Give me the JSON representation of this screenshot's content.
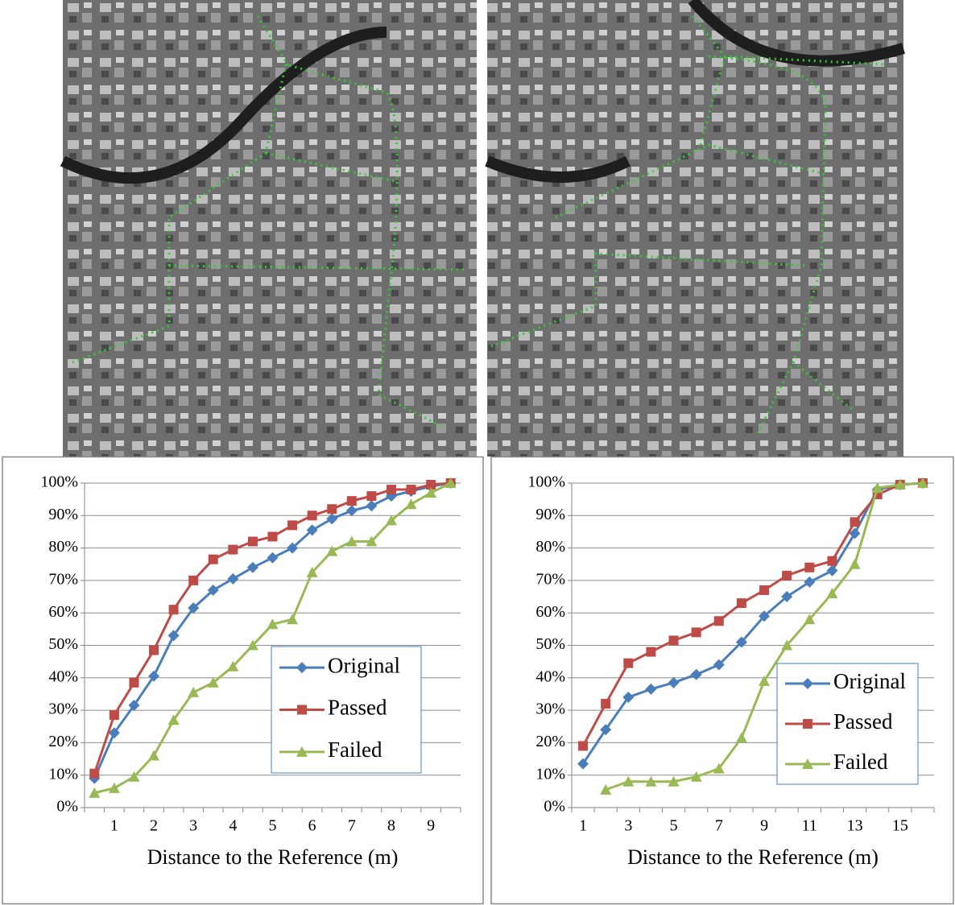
{
  "chart_data": [
    {
      "type": "line",
      "x_label": "Distance to the Reference (m)",
      "categories": [
        null,
        "1",
        null,
        "2",
        null,
        "3",
        null,
        "4",
        null,
        "5",
        null,
        "6",
        null,
        "7",
        null,
        "8",
        null,
        "9",
        null
      ],
      "series": [
        {
          "name": "Original",
          "color": "#4a7ebb",
          "marker": "diamond",
          "values": [
            9,
            23,
            31.5,
            40.5,
            53,
            61.5,
            67,
            70.5,
            74,
            77,
            80,
            85.5,
            89,
            91.5,
            93,
            96,
            97.5,
            99,
            100
          ]
        },
        {
          "name": "Passed",
          "color": "#be4b48",
          "marker": "square",
          "values": [
            10.5,
            28.5,
            38.5,
            48.5,
            61,
            70,
            76.5,
            79.5,
            82,
            83.5,
            87,
            90,
            92,
            94.5,
            96,
            98,
            98,
            99.5,
            100
          ]
        },
        {
          "name": "Failed",
          "color": "#98b954",
          "marker": "triangle",
          "values": [
            4.5,
            6,
            9.5,
            16,
            27,
            35.5,
            38.5,
            43.5,
            50,
            56.5,
            58,
            72.5,
            79,
            82,
            82,
            88.5,
            93.5,
            97,
            100
          ]
        }
      ],
      "ylim": [
        0,
        100
      ],
      "yticks": [
        {
          "value": 0,
          "label": "0%"
        },
        {
          "value": 10,
          "label": "10%"
        },
        {
          "value": 20,
          "label": "20%"
        },
        {
          "value": 30,
          "label": "30%"
        },
        {
          "value": 40,
          "label": "40%"
        },
        {
          "value": 50,
          "label": "50%"
        },
        {
          "value": 60,
          "label": "60%"
        },
        {
          "value": 70,
          "label": "70%"
        },
        {
          "value": 80,
          "label": "80%"
        },
        {
          "value": 90,
          "label": "90%"
        },
        {
          "value": 100,
          "label": "100%"
        }
      ],
      "grid": true,
      "legend": "lower-right"
    },
    {
      "type": "line",
      "x_label": "Distance to the Reference (m)",
      "categories": [
        "1",
        null,
        "3",
        null,
        "5",
        null,
        "7",
        null,
        "9",
        null,
        "11",
        null,
        "13",
        null,
        "15",
        null
      ],
      "series": [
        {
          "name": "Original",
          "color": "#4a7ebb",
          "marker": "diamond",
          "values": [
            13.5,
            24,
            34,
            36.5,
            38.5,
            41,
            44,
            51,
            59,
            65,
            69.5,
            73,
            84.5,
            98,
            99.5,
            100
          ]
        },
        {
          "name": "Passed",
          "color": "#be4b48",
          "marker": "square",
          "values": [
            19,
            32,
            44.5,
            48,
            51.5,
            54,
            57.5,
            63,
            67,
            71.5,
            74,
            76,
            88,
            96.5,
            99.5,
            100
          ]
        },
        {
          "name": "Failed",
          "color": "#98b954",
          "marker": "triangle",
          "values": [
            null,
            5.5,
            8,
            8,
            8,
            9.5,
            12,
            21.5,
            39,
            50,
            58,
            66,
            75,
            98.5,
            99.5,
            100
          ]
        }
      ],
      "ylim": [
        0,
        100
      ],
      "yticks": [
        {
          "value": 0,
          "label": "0%"
        },
        {
          "value": 10,
          "label": "10%"
        },
        {
          "value": 20,
          "label": "20%"
        },
        {
          "value": 30,
          "label": "30%"
        },
        {
          "value": 40,
          "label": "40%"
        },
        {
          "value": 50,
          "label": "50%"
        },
        {
          "value": 60,
          "label": "60%"
        },
        {
          "value": 70,
          "label": "70%"
        },
        {
          "value": 80,
          "label": "80%"
        },
        {
          "value": 90,
          "label": "90%"
        },
        {
          "value": 100,
          "label": "100%"
        }
      ],
      "grid": true,
      "legend": "lower-right"
    }
  ]
}
